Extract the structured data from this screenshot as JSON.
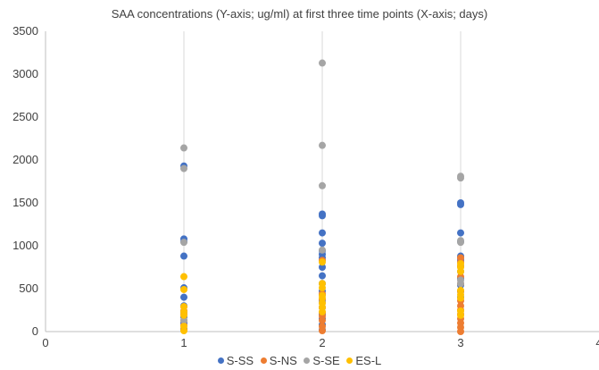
{
  "chart_data": {
    "type": "scatter",
    "title": "SAA concentrations (Y-axis; ug/ml) at first three time points (X-axis; days)",
    "xlabel": "",
    "ylabel": "",
    "xlim": [
      0,
      4
    ],
    "ylim": [
      0,
      3500
    ],
    "x_ticks": [
      "0",
      "1",
      "2",
      "3",
      "4"
    ],
    "y_ticks": [
      "0",
      "500",
      "1000",
      "1500",
      "2000",
      "2500",
      "3000",
      "3500"
    ],
    "grid": "vertical",
    "legend_position": "bottom",
    "series": [
      {
        "name": "S-SS",
        "color": "#4472C4",
        "points": [
          [
            1,
            1930
          ],
          [
            1,
            1080
          ],
          [
            1,
            1050
          ],
          [
            1,
            880
          ],
          [
            1,
            510
          ],
          [
            1,
            400
          ],
          [
            1,
            300
          ],
          [
            1,
            230
          ],
          [
            1,
            170
          ],
          [
            1,
            100
          ],
          [
            1,
            30
          ],
          [
            2,
            1370
          ],
          [
            2,
            1350
          ],
          [
            2,
            1150
          ],
          [
            2,
            1030
          ],
          [
            2,
            940
          ],
          [
            2,
            900
          ],
          [
            2,
            860
          ],
          [
            2,
            750
          ],
          [
            2,
            650
          ],
          [
            2,
            560
          ],
          [
            2,
            470
          ],
          [
            2,
            430
          ],
          [
            2,
            360
          ],
          [
            2,
            280
          ],
          [
            2,
            200
          ],
          [
            2,
            150
          ],
          [
            2,
            80
          ],
          [
            2,
            20
          ],
          [
            3,
            1500
          ],
          [
            3,
            1480
          ],
          [
            3,
            1150
          ],
          [
            3,
            1050
          ],
          [
            3,
            880
          ],
          [
            3,
            860
          ],
          [
            3,
            830
          ],
          [
            3,
            760
          ],
          [
            3,
            700
          ],
          [
            3,
            620
          ],
          [
            3,
            540
          ],
          [
            3,
            470
          ],
          [
            3,
            400
          ]
        ]
      },
      {
        "name": "S-NS",
        "color": "#ED7D31",
        "points": [
          [
            1,
            290
          ],
          [
            1,
            240
          ],
          [
            1,
            200
          ],
          [
            1,
            130
          ],
          [
            1,
            70
          ],
          [
            1,
            20
          ],
          [
            2,
            830
          ],
          [
            2,
            440
          ],
          [
            2,
            370
          ],
          [
            2,
            280
          ],
          [
            2,
            220
          ],
          [
            2,
            180
          ],
          [
            2,
            130
          ],
          [
            2,
            60
          ],
          [
            2,
            10
          ],
          [
            3,
            860
          ],
          [
            3,
            810
          ],
          [
            3,
            760
          ],
          [
            3,
            640
          ],
          [
            3,
            560
          ],
          [
            3,
            470
          ],
          [
            3,
            360
          ],
          [
            3,
            300
          ],
          [
            3,
            250
          ],
          [
            3,
            200
          ],
          [
            3,
            150
          ],
          [
            3,
            100
          ],
          [
            3,
            50
          ],
          [
            3,
            0
          ]
        ]
      },
      {
        "name": "S-SE",
        "color": "#A5A5A5",
        "points": [
          [
            1,
            2140
          ],
          [
            1,
            1900
          ],
          [
            1,
            1040
          ],
          [
            1,
            130
          ],
          [
            2,
            3130
          ],
          [
            2,
            2170
          ],
          [
            2,
            1700
          ],
          [
            2,
            950
          ],
          [
            2,
            340
          ],
          [
            3,
            1810
          ],
          [
            3,
            1790
          ],
          [
            3,
            1060
          ],
          [
            3,
            1040
          ],
          [
            3,
            600
          ],
          [
            3,
            560
          ]
        ]
      },
      {
        "name": "ES-L",
        "color": "#FFC000",
        "points": [
          [
            1,
            640
          ],
          [
            1,
            490
          ],
          [
            1,
            290
          ],
          [
            1,
            230
          ],
          [
            1,
            190
          ],
          [
            1,
            60
          ],
          [
            1,
            10
          ],
          [
            2,
            810
          ],
          [
            2,
            560
          ],
          [
            2,
            510
          ],
          [
            2,
            420
          ],
          [
            2,
            390
          ],
          [
            2,
            330
          ],
          [
            2,
            280
          ],
          [
            2,
            230
          ],
          [
            3,
            790
          ],
          [
            3,
            750
          ],
          [
            3,
            700
          ],
          [
            3,
            480
          ],
          [
            3,
            430
          ],
          [
            3,
            390
          ],
          [
            3,
            240
          ],
          [
            3,
            190
          ]
        ]
      }
    ]
  }
}
